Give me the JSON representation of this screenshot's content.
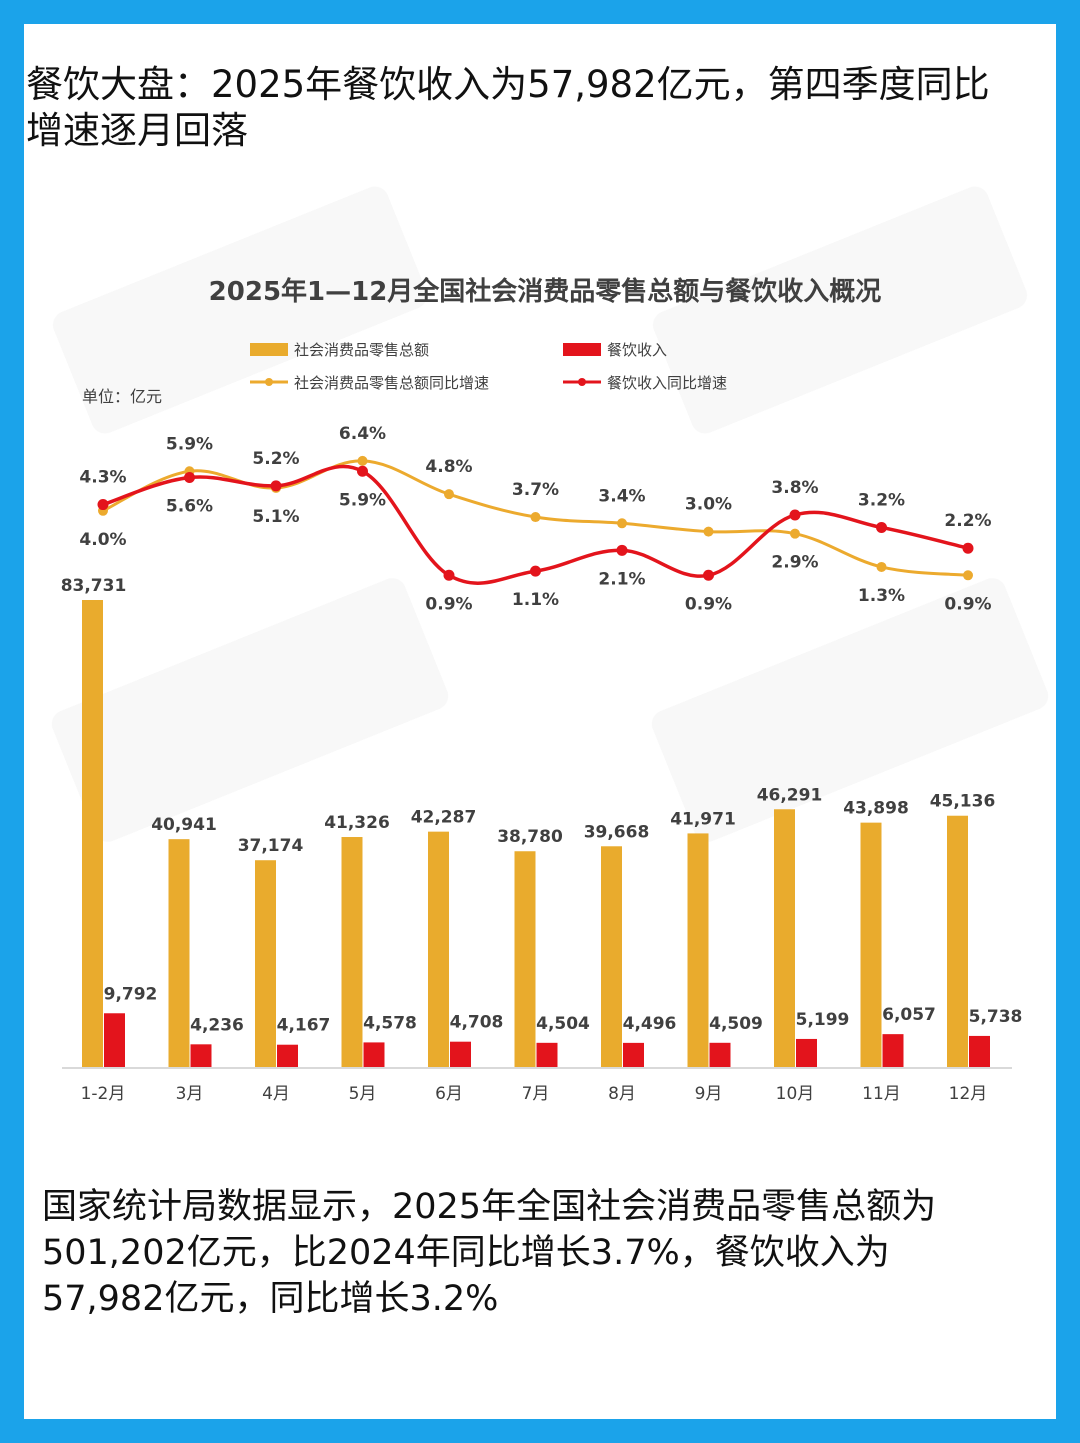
{
  "headline": "餐饮大盘：2025年餐饮收入为57,982亿元，第四季度同比增速逐月回落",
  "footer": "国家统计局数据显示，2025年全国社会消费品零售总额为501,202亿元，比2024年同比增长3.7%，餐饮收入为57,982亿元，同比增长3.2%",
  "colors": {
    "background": "#1ba3ea",
    "retail": "#e9ab2d",
    "catering": "#e3141c",
    "retail_line": "#ecaa2e",
    "catering_line": "#e3141c"
  },
  "chart_data": {
    "type": "bar",
    "title": "2025年1—12月全国社会消费品零售总额与餐饮收入概况",
    "unit_label": "单位：亿元",
    "categories": [
      "1-2月",
      "3月",
      "4月",
      "5月",
      "6月",
      "7月",
      "8月",
      "9月",
      "10月",
      "11月",
      "12月"
    ],
    "series": [
      {
        "name": "社会消费品零售总额",
        "type": "bar",
        "values": [
          83731,
          40941,
          37174,
          41326,
          42287,
          38780,
          39668,
          41971,
          46291,
          43898,
          45136
        ],
        "labels": [
          "83,731",
          "40,941",
          "37,174",
          "41,326",
          "42,287",
          "38,780",
          "39,668",
          "41,971",
          "46,291",
          "43,898",
          "45,136"
        ]
      },
      {
        "name": "餐饮收入",
        "type": "bar",
        "values": [
          9792,
          4236,
          4167,
          4578,
          4708,
          4504,
          4496,
          4509,
          5199,
          6057,
          5738
        ],
        "labels": [
          "9,792",
          "4,236",
          "4,167",
          "4,578",
          "4,708",
          "4,504",
          "4,496",
          "4,509",
          "5,199",
          "6,057",
          "5,738"
        ]
      },
      {
        "name": "社会消费品零售总额同比增速",
        "type": "line",
        "values": [
          4.0,
          5.9,
          5.1,
          6.4,
          4.8,
          3.7,
          3.4,
          3.0,
          2.9,
          1.3,
          0.9
        ],
        "labels": [
          "4.0%",
          "5.9%",
          "5.1%",
          "6.4%",
          "4.8%",
          "3.7%",
          "3.4%",
          "3.0%",
          "2.9%",
          "1.3%",
          "0.9%"
        ]
      },
      {
        "name": "餐饮收入同比增速",
        "type": "line",
        "values": [
          4.3,
          5.6,
          5.2,
          5.9,
          0.9,
          1.1,
          2.1,
          0.9,
          3.8,
          3.2,
          2.2
        ],
        "labels": [
          "4.3%",
          "5.6%",
          "5.2%",
          "5.9%",
          "0.9%",
          "1.1%",
          "2.1%",
          "0.9%",
          "3.8%",
          "3.2%",
          "2.2%"
        ]
      }
    ],
    "legend_position": "top",
    "grid": false
  }
}
